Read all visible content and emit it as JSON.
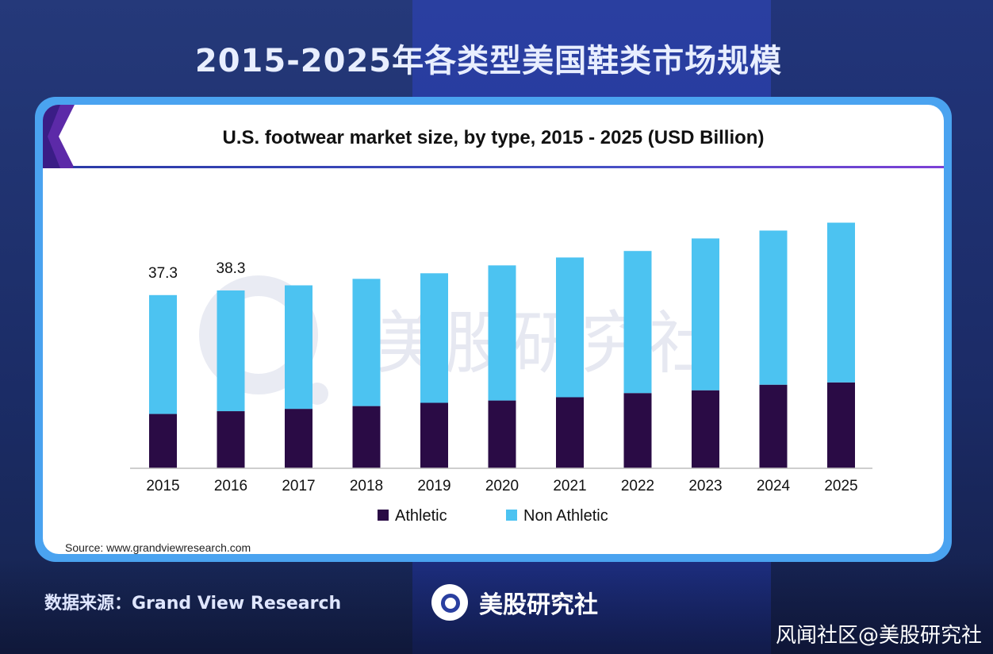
{
  "page": {
    "main_title": "2015-2025年各类型美国鞋类市场规模",
    "footer_source": "数据来源：Grand View Research",
    "footer_brand": "美股研究社",
    "corner_watermark": "风闻社区@美股研究社",
    "chart_watermark": "美股研究社"
  },
  "chart_data": {
    "type": "bar",
    "stacked": true,
    "title": "U.S. footwear market size, by type, 2015 - 2025 (USD Billion)",
    "source": "Source: www.grandviewresearch.com",
    "categories": [
      "2015",
      "2016",
      "2017",
      "2018",
      "2019",
      "2020",
      "2021",
      "2022",
      "2023",
      "2024",
      "2025"
    ],
    "series": [
      {
        "name": "Athletic",
        "color": "#2a0b45",
        "values": [
          11.7,
          12.3,
          12.8,
          13.4,
          14.1,
          14.6,
          15.3,
          16.2,
          16.8,
          18.0,
          18.5
        ]
      },
      {
        "name": "Non Athletic",
        "color": "#4cc3f1",
        "values": [
          25.6,
          26.0,
          26.6,
          27.4,
          27.9,
          29.1,
          30.1,
          30.6,
          32.7,
          33.2,
          34.4
        ]
      }
    ],
    "data_labels": [
      {
        "category": "2015",
        "text": "37.3"
      },
      {
        "category": "2016",
        "text": "38.3"
      }
    ],
    "ylim": [
      0,
      60
    ],
    "grid": false,
    "legend_position": "bottom"
  }
}
